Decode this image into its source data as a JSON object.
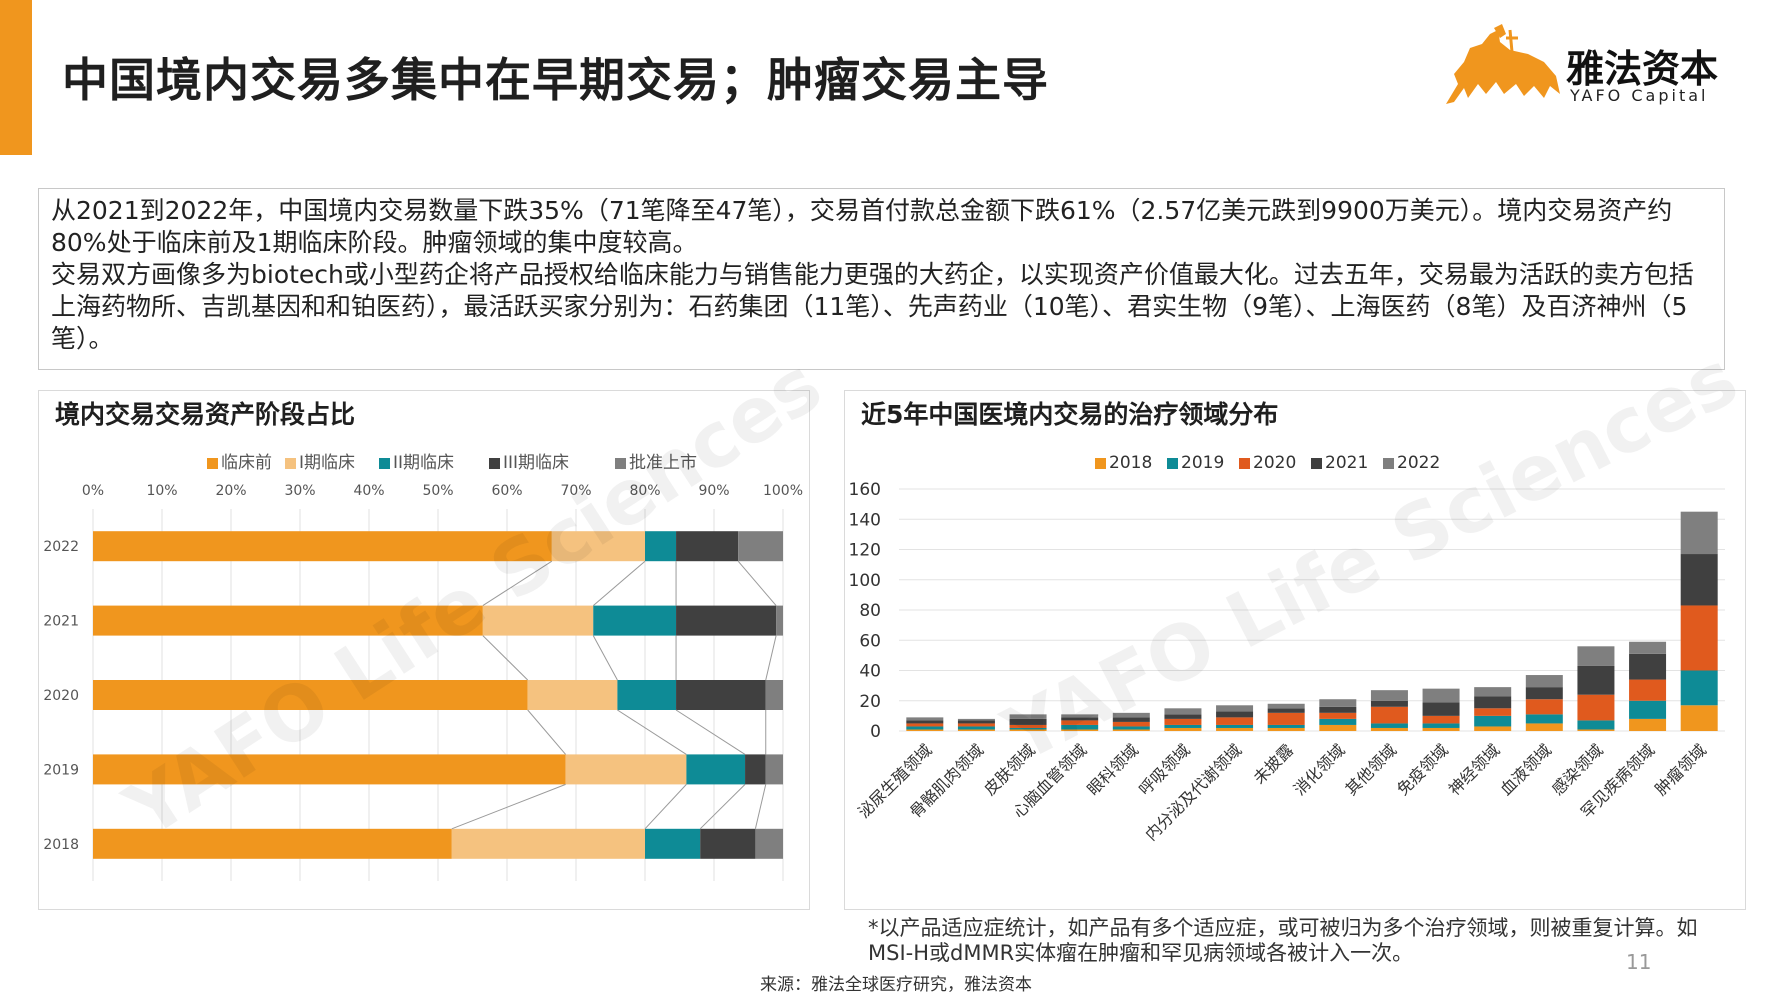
{
  "page": {
    "title": "中国境内交易多集中在早期交易；肿瘤交易主导",
    "logo_name": "雅法资本",
    "logo_sub": "YAFO Capital",
    "summary": [
      "从2021到2022年，中国境内交易数量下跌35%（71笔降至47笔），交易首付款总金额下跌61%（2.57亿美元跌到9900万美元）。境内交易资产约80%处于临床前及1期临床阶段。肿瘤领域的集中度较高。",
      "交易双方画像多为biotech或小型药企将产品授权给临床能力与销售能力更强的大药企，以实现资产价值最大化。过去五年，交易最为活跃的卖方包括上海药物所、吉凯基因和和铂医药），最活跃买家分别为：石药集团（11笔）、先声药业（10笔）、君实生物（9笔）、上海医药（8笔）及百济神州（5笔）。"
    ],
    "footnote": "*以产品适应症统计，如产品有多个适应症，或可被归为多个治疗领域，则被重复计算。如MSI-H或dMMR实体瘤在肿瘤和罕见病领域各被计入一次。",
    "source": "来源：雅法全球医疗研究，雅法资本",
    "page_number": "11",
    "watermark": "YAFO Life Sciences"
  },
  "chart_data": [
    {
      "type": "bar",
      "orientation": "horizontal",
      "stacked": true,
      "percent": true,
      "title": "境内交易交易资产阶段占比",
      "categories": [
        "2022",
        "2021",
        "2020",
        "2019",
        "2018"
      ],
      "x_ticks": [
        "0%",
        "10%",
        "20%",
        "30%",
        "40%",
        "50%",
        "60%",
        "70%",
        "80%",
        "90%",
        "100%"
      ],
      "xlim": [
        0,
        100
      ],
      "legend_position": "top",
      "series": [
        {
          "name": "临床前",
          "color": "#f0961e",
          "values": [
            66.5,
            56.5,
            63,
            68.5,
            52
          ]
        },
        {
          "name": "I期临床",
          "color": "#f5c27f",
          "values": [
            13.5,
            16,
            13,
            17.5,
            28
          ]
        },
        {
          "name": "II期临床",
          "color": "#0e8b96",
          "values": [
            4.5,
            12,
            8.5,
            8.5,
            8
          ]
        },
        {
          "name": "III期临床",
          "color": "#404040",
          "values": [
            9,
            14.5,
            13,
            3,
            8
          ]
        },
        {
          "name": "批准上市",
          "color": "#7f7f7f",
          "values": [
            6.5,
            1,
            2.5,
            2.5,
            4
          ]
        }
      ]
    },
    {
      "type": "bar",
      "stacked": true,
      "title": "近5年中国医境内交易的治疗领域分布",
      "categories": [
        "泌尿生殖领域",
        "骨骼肌肉领域",
        "皮肤领域",
        "心脑血管领域",
        "眼科领域",
        "呼吸领域",
        "内分泌及代谢领域",
        "未披露",
        "消化领域",
        "其他领域",
        "免疫领域",
        "神经领域",
        "血液领域",
        "感染领域",
        "罕见疾病领域",
        "肿瘤领域"
      ],
      "ylim": [
        0,
        160
      ],
      "y_ticks": [
        0,
        20,
        40,
        60,
        80,
        100,
        120,
        140,
        160
      ],
      "grid": true,
      "legend_position": "top",
      "series": [
        {
          "name": "2018",
          "color": "#f0961e",
          "values": [
            1,
            1,
            1,
            1,
            1,
            2,
            2,
            2,
            4,
            2,
            2,
            3,
            5,
            1,
            8,
            17
          ]
        },
        {
          "name": "2019",
          "color": "#0e8b96",
          "values": [
            2,
            2,
            1,
            3,
            2,
            2,
            2,
            2,
            4,
            3,
            3,
            7,
            6,
            6,
            12,
            23
          ]
        },
        {
          "name": "2020",
          "color": "#e05a1e",
          "values": [
            2,
            2,
            2,
            3,
            3,
            4,
            5,
            8,
            4,
            11,
            5,
            5,
            10,
            17,
            14,
            43
          ]
        },
        {
          "name": "2021",
          "color": "#404040",
          "values": [
            2,
            2,
            4,
            2,
            3,
            3,
            4,
            3,
            4,
            4,
            9,
            8,
            8,
            19,
            17,
            34
          ]
        },
        {
          "name": "2022",
          "color": "#7f7f7f",
          "values": [
            2,
            1,
            3,
            2,
            3,
            4,
            4,
            3,
            5,
            7,
            9,
            6,
            8,
            13,
            8,
            28
          ]
        }
      ]
    }
  ]
}
